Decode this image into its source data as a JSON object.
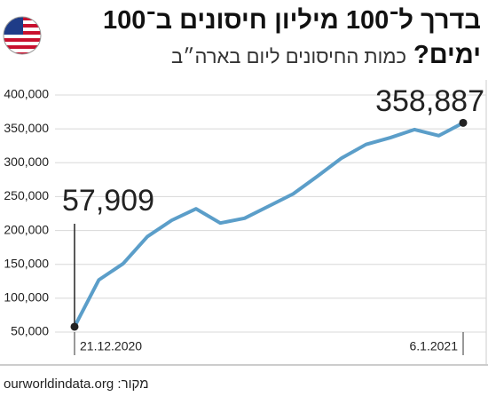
{
  "chart_data": {
    "type": "line",
    "title": "בדרך ל־100 מיליון חיסונים ב־100 ימים?",
    "subtitle": "כמות החיסונים ליום בארה״ב",
    "source": "מקור: ourworldindata.org",
    "categories": [
      "21.12.2020",
      null,
      null,
      null,
      null,
      null,
      null,
      null,
      null,
      null,
      null,
      null,
      null,
      null,
      null,
      null,
      "6.1.2021"
    ],
    "values": [
      57909,
      127000,
      151000,
      191000,
      215000,
      232000,
      211000,
      218000,
      236000,
      254000,
      280000,
      307000,
      327000,
      337000,
      349000,
      340000,
      358887
    ],
    "value_labels": [
      "57,909",
      null,
      null,
      null,
      null,
      null,
      null,
      null,
      null,
      null,
      null,
      null,
      null,
      null,
      null,
      null,
      "358,887"
    ],
    "color": "#5b9ec9",
    "ylim": [
      50000,
      400000
    ],
    "yticks": [
      {
        "value": 50000,
        "label": "50,000"
      },
      {
        "value": 100000,
        "label": "100,000"
      },
      {
        "value": 150000,
        "label": "150,000"
      },
      {
        "value": 200000,
        "label": "200,000"
      },
      {
        "value": 250000,
        "label": "250,000"
      },
      {
        "value": 300000,
        "label": "300,000"
      },
      {
        "value": 350000,
        "label": "350,000"
      },
      {
        "value": 400000,
        "label": "400,000"
      }
    ],
    "grid": true
  }
}
